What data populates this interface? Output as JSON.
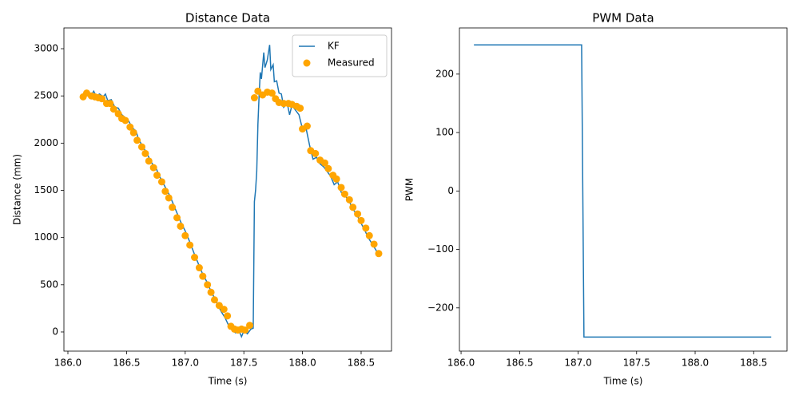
{
  "chart_data": [
    {
      "type": "line",
      "title": "Distance Data",
      "xlabel": "Time (s)",
      "ylabel": "Distance (mm)",
      "xlim": [
        185.966,
        188.759
      ],
      "ylim": [
        -203,
        3220
      ],
      "xticks": [
        {
          "value": 186,
          "label": "186.0"
        },
        {
          "value": 186.5,
          "label": "186.5"
        },
        {
          "value": 187,
          "label": "187.0"
        },
        {
          "value": 187.5,
          "label": "187.5"
        },
        {
          "value": 188,
          "label": "188.0"
        },
        {
          "value": 188.5,
          "label": "188.5"
        }
      ],
      "yticks": [
        0,
        500,
        1000,
        1500,
        2000,
        2500,
        3000
      ],
      "legend": "upper right",
      "series": [
        {
          "name": "KF",
          "type": "line",
          "color": "#1f77b4",
          "x": [
            186.11,
            186.14,
            186.17,
            186.2,
            186.22,
            186.24,
            186.27,
            186.3,
            186.32,
            186.34,
            186.37,
            186.4,
            186.43,
            186.46,
            186.49,
            186.52,
            186.55,
            186.58,
            186.6,
            186.63,
            186.66,
            186.69,
            186.72,
            186.75,
            186.78,
            186.81,
            186.84,
            186.87,
            186.9,
            186.93,
            186.96,
            187.0,
            187.04,
            187.08,
            187.12,
            187.15,
            187.19,
            187.22,
            187.25,
            187.28,
            187.31,
            187.34,
            187.37,
            187.4,
            187.43,
            187.46,
            187.48,
            187.5,
            187.53,
            187.56,
            187.58,
            187.59,
            187.6,
            187.61,
            187.62,
            187.63,
            187.64,
            187.65,
            187.67,
            187.68,
            187.7,
            187.72,
            187.73,
            187.75,
            187.76,
            187.78,
            187.8,
            187.82,
            187.84,
            187.87,
            187.89,
            187.91,
            187.94,
            187.97,
            188.0,
            188.03,
            188.06,
            188.09,
            188.12,
            188.15,
            188.18,
            188.21,
            188.24,
            188.27,
            188.3,
            188.33,
            188.36,
            188.4,
            188.43,
            188.46,
            188.5,
            188.53,
            188.56,
            188.6,
            188.65
          ],
          "values": [
            2500,
            2510,
            2530,
            2510,
            2550,
            2500,
            2520,
            2490,
            2520,
            2450,
            2460,
            2380,
            2370,
            2300,
            2270,
            2230,
            2160,
            2130,
            2050,
            1980,
            1920,
            1850,
            1780,
            1740,
            1650,
            1580,
            1510,
            1440,
            1350,
            1260,
            1170,
            1070,
            950,
            820,
            700,
            610,
            520,
            430,
            360,
            280,
            210,
            150,
            70,
            20,
            -10,
            10,
            -50,
            10,
            -20,
            30,
            40,
            1380,
            1500,
            1700,
            2200,
            2500,
            2750,
            2680,
            2960,
            2800,
            2880,
            3040,
            2780,
            2830,
            2650,
            2660,
            2530,
            2520,
            2380,
            2420,
            2300,
            2400,
            2350,
            2300,
            2150,
            2160,
            1980,
            1830,
            1850,
            1780,
            1750,
            1700,
            1650,
            1560,
            1590,
            1480,
            1450,
            1380,
            1300,
            1250,
            1150,
            1080,
            1000,
            920,
            820
          ]
        },
        {
          "name": "Measured",
          "type": "scatter",
          "color": "#ffa500",
          "x": [
            186.13,
            186.16,
            186.2,
            186.23,
            186.26,
            186.29,
            186.33,
            186.36,
            186.39,
            186.43,
            186.46,
            186.49,
            186.53,
            186.56,
            186.59,
            186.63,
            186.66,
            186.69,
            186.73,
            186.76,
            186.8,
            186.83,
            186.86,
            186.89,
            186.93,
            186.96,
            187.0,
            187.04,
            187.08,
            187.12,
            187.15,
            187.19,
            187.22,
            187.25,
            187.29,
            187.33,
            187.36,
            187.39,
            187.42,
            187.45,
            187.48,
            187.51,
            187.55,
            187.59,
            187.62,
            187.66,
            187.7,
            187.74,
            187.77,
            187.8,
            187.84,
            187.88,
            187.91,
            187.95,
            187.98,
            188.0,
            188.04,
            188.07,
            188.11,
            188.15,
            188.19,
            188.22,
            188.26,
            188.29,
            188.33,
            188.36,
            188.4,
            188.43,
            188.47,
            188.5,
            188.54,
            188.57,
            188.61,
            188.65
          ],
          "values": [
            2490,
            2530,
            2500,
            2490,
            2480,
            2470,
            2420,
            2420,
            2360,
            2310,
            2260,
            2240,
            2170,
            2110,
            2030,
            1960,
            1890,
            1810,
            1740,
            1660,
            1590,
            1490,
            1420,
            1320,
            1210,
            1120,
            1020,
            920,
            790,
            680,
            590,
            500,
            420,
            340,
            280,
            240,
            170,
            60,
            30,
            20,
            30,
            20,
            70,
            2480,
            2550,
            2510,
            2540,
            2530,
            2470,
            2430,
            2420,
            2420,
            2410,
            2390,
            2370,
            2150,
            2180,
            1920,
            1890,
            1820,
            1790,
            1730,
            1660,
            1620,
            1530,
            1460,
            1400,
            1320,
            1250,
            1180,
            1100,
            1020,
            930,
            830
          ]
        }
      ]
    },
    {
      "type": "line",
      "title": "PWM Data",
      "xlabel": "Time (s)",
      "ylabel": "PWM",
      "xlim": [
        185.986,
        188.785
      ],
      "ylim": [
        -274,
        279
      ],
      "xticks": [
        {
          "value": 186,
          "label": "186.0"
        },
        {
          "value": 186.5,
          "label": "186.5"
        },
        {
          "value": 187,
          "label": "187.0"
        },
        {
          "value": 187.5,
          "label": "187.5"
        },
        {
          "value": 188,
          "label": "188.0"
        },
        {
          "value": 188.5,
          "label": "188.5"
        }
      ],
      "yticks": [
        {
          "value": -200,
          "label": "−200"
        },
        {
          "value": -100,
          "label": "−100"
        },
        0,
        100,
        200
      ],
      "series": [
        {
          "name": "PWM",
          "type": "line",
          "color": "#1f77b4",
          "x": [
            186.11,
            187.03,
            187.05,
            188.65
          ],
          "values": [
            250,
            250,
            -250,
            -250
          ]
        }
      ]
    }
  ]
}
